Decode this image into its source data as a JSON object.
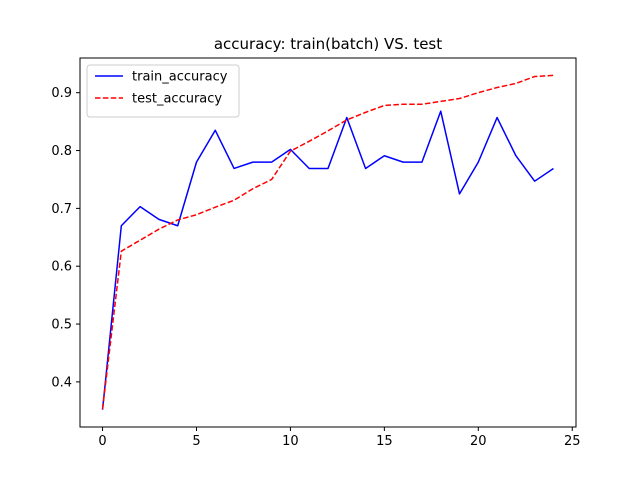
{
  "chart_data": {
    "type": "line",
    "title": "accuracy: train(batch) VS. test",
    "xlabel": "",
    "ylabel": "",
    "xlim": [
      -1.2,
      25.2
    ],
    "ylim": [
      0.322,
      0.96
    ],
    "xticks": [
      0,
      5,
      10,
      15,
      20,
      25
    ],
    "yticks": [
      0.4,
      0.5,
      0.6,
      0.7,
      0.8,
      0.9
    ],
    "xtick_labels": [
      "0",
      "5",
      "10",
      "15",
      "20",
      "25"
    ],
    "ytick_labels": [
      "0.4",
      "0.5",
      "0.6",
      "0.7",
      "0.8",
      "0.9"
    ],
    "legend_position": "top-left",
    "grid": false,
    "x": [
      0,
      1,
      2,
      3,
      4,
      5,
      6,
      7,
      8,
      9,
      10,
      11,
      12,
      13,
      14,
      15,
      16,
      17,
      18,
      19,
      20,
      21,
      22,
      23,
      24
    ],
    "series": [
      {
        "name": "train_accuracy",
        "color": "#0000ff",
        "dash": "solid",
        "values": [
          0.352,
          0.67,
          0.703,
          0.681,
          0.67,
          0.78,
          0.835,
          0.769,
          0.78,
          0.78,
          0.802,
          0.769,
          0.769,
          0.857,
          0.769,
          0.791,
          0.78,
          0.78,
          0.868,
          0.725,
          0.78,
          0.857,
          0.791,
          0.747,
          0.769
        ]
      },
      {
        "name": "test_accuracy",
        "color": "#ff0000",
        "dash": "dashed",
        "values": [
          0.353,
          0.626,
          0.645,
          0.664,
          0.68,
          0.689,
          0.702,
          0.714,
          0.734,
          0.75,
          0.799,
          0.816,
          0.834,
          0.853,
          0.866,
          0.878,
          0.88,
          0.88,
          0.885,
          0.89,
          0.9,
          0.909,
          0.916,
          0.928,
          0.93
        ]
      }
    ]
  }
}
